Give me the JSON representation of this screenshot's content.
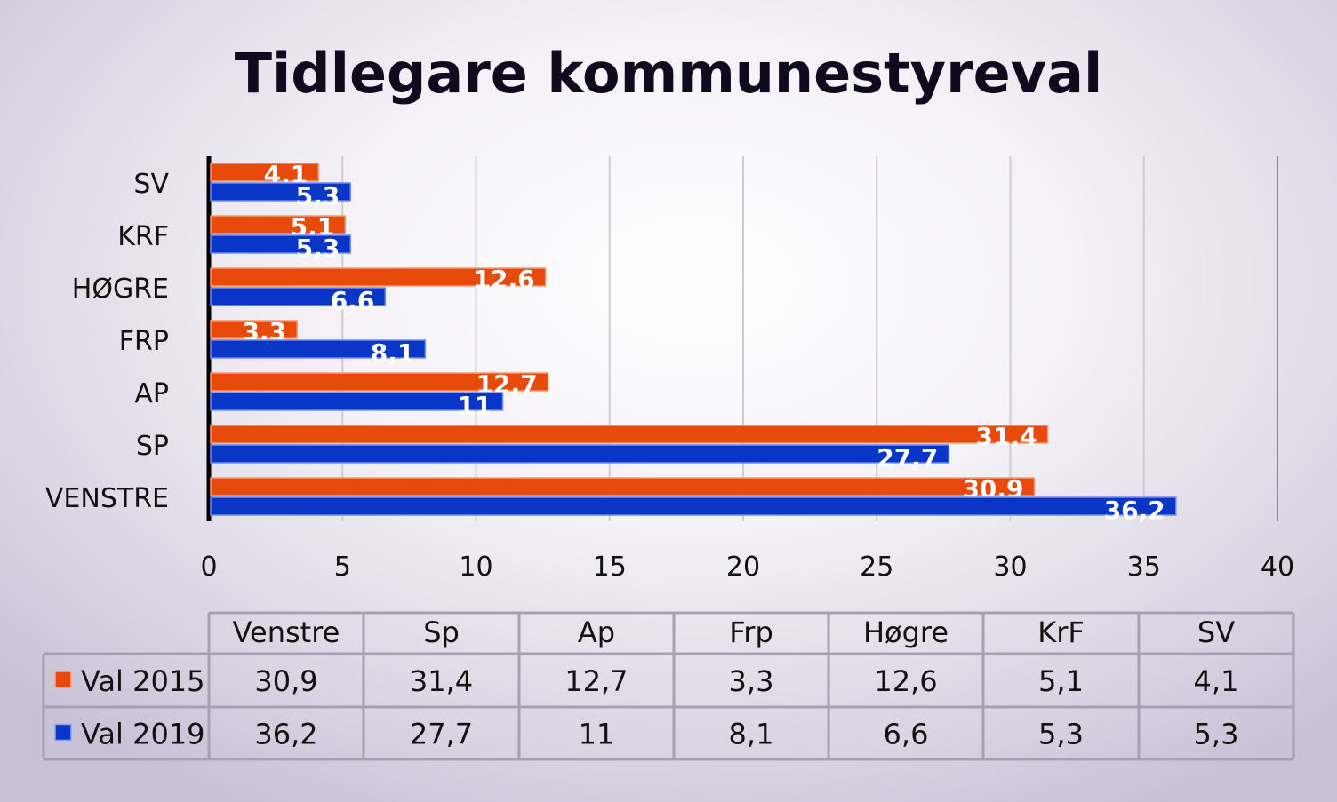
{
  "chart_data": {
    "type": "bar",
    "orientation": "horizontal",
    "title": "Tidlegare kommunestyreval",
    "categories": [
      "VENSTRE",
      "SP",
      "AP",
      "FRP",
      "HØGRE",
      "KRF",
      "SV"
    ],
    "series": [
      {
        "name": "Val 2015",
        "color": "#e84a0c",
        "values": [
          30.9,
          31.4,
          12.7,
          3.3,
          12.6,
          5.1,
          4.1
        ],
        "labels": [
          "30,9",
          "31,4",
          "12,7",
          "3,3",
          "12,6",
          "5,1",
          "4,1"
        ]
      },
      {
        "name": "Val 2019",
        "color": "#0a36c8",
        "values": [
          36.2,
          27.7,
          11,
          8.1,
          6.6,
          5.3,
          5.3
        ],
        "labels": [
          "36,2",
          "27,7",
          "11",
          "8,1",
          "6,6",
          "5,3",
          "5,3"
        ]
      }
    ],
    "xlim": [
      0,
      40
    ],
    "xticks": [
      "0",
      "5",
      "10",
      "15",
      "20",
      "25",
      "30",
      "35",
      "40"
    ],
    "grid": true,
    "legend": "data-table-bottom",
    "data_table": {
      "columns": [
        "Venstre",
        "Sp",
        "Ap",
        "Frp",
        "Høgre",
        "KrF",
        "SV"
      ],
      "rows": [
        {
          "name": "Val 2015",
          "values": [
            "30,9",
            "31,4",
            "12,7",
            "3,3",
            "12,6",
            "5,1",
            "4,1"
          ]
        },
        {
          "name": "Val 2019",
          "values": [
            "36,2",
            "27,7",
            "11",
            "8,1",
            "6,6",
            "5,3",
            "5,3"
          ]
        }
      ]
    }
  }
}
